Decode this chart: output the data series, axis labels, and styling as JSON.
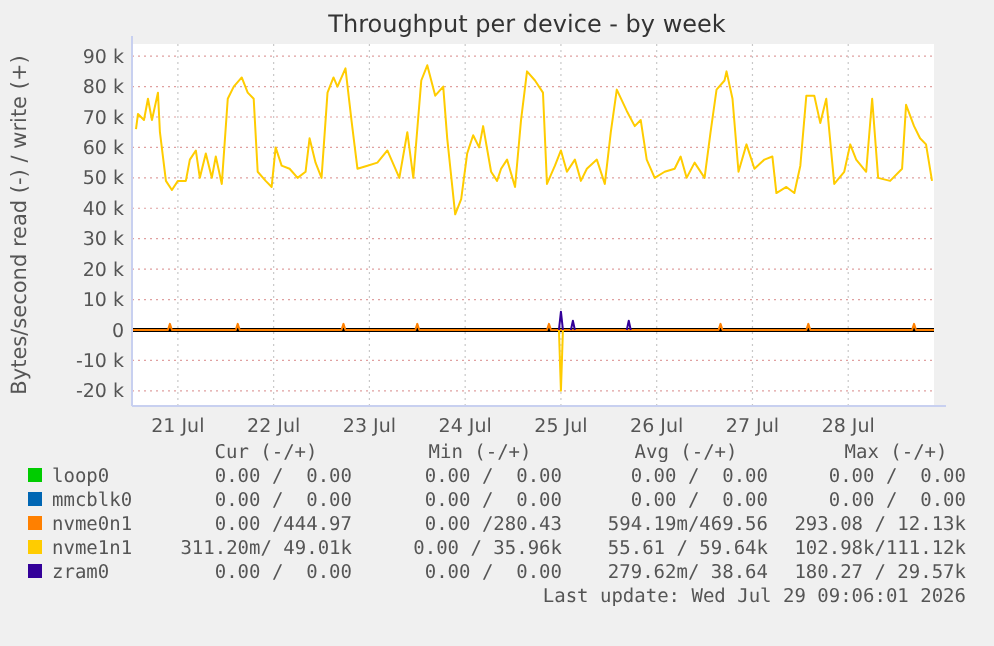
{
  "chart_data": {
    "type": "line",
    "title": "Throughput per device - by week",
    "ylabel": "Bytes/second read (-) / write (+)",
    "xlim": [
      "2026-07-21T00:30",
      "2026-07-29T09:30"
    ],
    "xticks": [
      {
        "value": "2026-07-21T12:00",
        "label": "21 Jul"
      },
      {
        "value": "2026-07-22T12:00",
        "label": "22 Jul"
      },
      {
        "value": "2026-07-23T12:00",
        "label": "23 Jul"
      },
      {
        "value": "2026-07-24T12:00",
        "label": "24 Jul"
      },
      {
        "value": "2026-07-25T12:00",
        "label": "25 Jul"
      },
      {
        "value": "2026-07-26T12:00",
        "label": "26 Jul"
      },
      {
        "value": "2026-07-27T12:00",
        "label": "27 Jul"
      },
      {
        "value": "2026-07-28T12:00",
        "label": "28 Jul"
      }
    ],
    "ylim": [
      -25000,
      94000
    ],
    "yticks": [
      {
        "value": -20000,
        "label": "-20 k"
      },
      {
        "value": -10000,
        "label": "-10 k"
      },
      0,
      {
        "value": 10000,
        "label": "10 k"
      },
      {
        "value": 20000,
        "label": "20 k"
      },
      {
        "value": 30000,
        "label": "30 k"
      },
      {
        "value": 40000,
        "label": "40 k"
      },
      {
        "value": 50000,
        "label": "50 k"
      },
      {
        "value": 60000,
        "label": "60 k"
      },
      {
        "value": 70000,
        "label": "70 k"
      },
      {
        "value": 80000,
        "label": "80 k"
      },
      {
        "value": 90000,
        "label": "90 k"
      }
    ],
    "grid": true,
    "legend": "bottom",
    "marker": "none",
    "line_style": "solid",
    "ref_lines": [
      {
        "axis": "y",
        "value": 0,
        "color": "#000000"
      }
    ],
    "series": [
      {
        "name": "loop0",
        "color": "#00cc00"
      },
      {
        "name": "mmcblk0",
        "color": "#0066b3"
      },
      {
        "name": "nvme0n1",
        "color": "#ff8000",
        "x": [
          "2026-07-21T00:30",
          "2026-07-21T09:30",
          "2026-07-21T10:00",
          "2026-07-21T10:30",
          "2026-07-22T02:30",
          "2026-07-22T03:00",
          "2026-07-22T03:30",
          "2026-07-23T05:00",
          "2026-07-23T05:30",
          "2026-07-23T06:00",
          "2026-07-23T23:30",
          "2026-07-24T00:00",
          "2026-07-24T00:30",
          "2026-07-25T08:30",
          "2026-07-25T09:00",
          "2026-07-25T09:30",
          "2026-07-27T03:30",
          "2026-07-27T04:00",
          "2026-07-27T04:30",
          "2026-07-28T01:30",
          "2026-07-28T02:00",
          "2026-07-28T02:30",
          "2026-07-29T04:00",
          "2026-07-29T04:30",
          "2026-07-29T05:00",
          "2026-07-29T09:30"
        ],
        "values": [
          0,
          0,
          2000,
          0,
          0,
          2000,
          0,
          0,
          2000,
          0,
          0,
          2000,
          0,
          0,
          2000,
          0,
          0,
          2000,
          0,
          0,
          2000,
          0,
          0,
          2000,
          0,
          0
        ]
      },
      {
        "name": "nvme1n1",
        "color": "#ffcc00",
        "x": [
          "2026-07-21T01:30",
          "2026-07-21T02:00",
          "2026-07-21T03:30",
          "2026-07-21T04:30",
          "2026-07-21T05:30",
          "2026-07-21T07:00",
          "2026-07-21T07:30",
          "2026-07-21T09:00",
          "2026-07-21T10:30",
          "2026-07-21T12:00",
          "2026-07-21T14:00",
          "2026-07-21T15:00",
          "2026-07-21T16:30",
          "2026-07-21T17:30",
          "2026-07-21T19:00",
          "2026-07-21T20:30",
          "2026-07-21T21:30",
          "2026-07-21T23:00",
          "2026-07-22T00:30",
          "2026-07-22T02:00",
          "2026-07-22T04:00",
          "2026-07-22T05:30",
          "2026-07-22T07:00",
          "2026-07-22T08:00",
          "2026-07-22T10:00",
          "2026-07-22T11:30",
          "2026-07-22T12:30",
          "2026-07-22T14:00",
          "2026-07-22T16:00",
          "2026-07-22T18:00",
          "2026-07-22T20:00",
          "2026-07-22T21:00",
          "2026-07-22T22:30",
          "2026-07-23T00:00",
          "2026-07-23T01:30",
          "2026-07-23T03:00",
          "2026-07-23T04:00",
          "2026-07-23T06:00",
          "2026-07-23T07:30",
          "2026-07-23T09:00",
          "2026-07-23T11:30",
          "2026-07-23T14:00",
          "2026-07-23T16:30",
          "2026-07-23T19:30",
          "2026-07-23T21:30",
          "2026-07-23T23:00",
          "2026-07-24T01:00",
          "2026-07-24T02:30",
          "2026-07-24T04:30",
          "2026-07-24T06:30",
          "2026-07-24T07:30",
          "2026-07-24T09:30",
          "2026-07-24T11:00",
          "2026-07-24T12:30",
          "2026-07-24T14:00",
          "2026-07-24T15:30",
          "2026-07-24T16:30",
          "2026-07-24T18:30",
          "2026-07-24T20:00",
          "2026-07-24T21:00",
          "2026-07-24T22:30",
          "2026-07-25T00:30",
          "2026-07-25T02:00",
          "2026-07-25T03:30",
          "2026-07-25T05:30",
          "2026-07-25T07:30",
          "2026-07-25T08:30",
          "2026-07-25T10:30",
          "2026-07-25T12:00",
          "2026-07-25T13:30",
          "2026-07-25T15:30",
          "2026-07-25T17:00",
          "2026-07-25T18:30",
          "2026-07-25T21:00",
          "2026-07-25T23:00",
          "2026-07-26T00:30",
          "2026-07-26T02:00",
          "2026-07-26T04:30",
          "2026-07-26T06:30",
          "2026-07-26T08:00",
          "2026-07-26T09:30",
          "2026-07-26T11:30",
          "2026-07-26T14:00",
          "2026-07-26T16:30",
          "2026-07-26T18:00",
          "2026-07-26T19:30",
          "2026-07-26T21:30",
          "2026-07-27T00:00",
          "2026-07-27T01:30",
          "2026-07-27T03:00",
          "2026-07-27T05:00",
          "2026-07-27T05:30",
          "2026-07-27T07:00",
          "2026-07-27T08:30",
          "2026-07-27T10:30",
          "2026-07-27T12:30",
          "2026-07-27T15:00",
          "2026-07-27T17:00",
          "2026-07-27T18:00",
          "2026-07-27T20:30",
          "2026-07-27T22:30",
          "2026-07-28T00:00",
          "2026-07-28T01:30",
          "2026-07-28T03:30",
          "2026-07-28T05:00",
          "2026-07-28T06:30",
          "2026-07-28T08:30",
          "2026-07-28T11:00",
          "2026-07-28T12:30",
          "2026-07-28T14:00",
          "2026-07-28T16:30",
          "2026-07-28T18:00",
          "2026-07-28T19:30",
          "2026-07-28T22:30",
          "2026-07-29T01:30",
          "2026-07-29T02:30",
          "2026-07-29T04:30",
          "2026-07-29T06:00",
          "2026-07-29T07:30",
          "2026-07-29T09:00"
        ],
        "values": [
          66000,
          71000,
          69000,
          76000,
          69000,
          78000,
          65000,
          49000,
          46000,
          49000,
          49000,
          56000,
          59000,
          50000,
          58000,
          50000,
          57000,
          48000,
          76000,
          80000,
          83000,
          78000,
          76000,
          52000,
          49000,
          47000,
          60000,
          54000,
          53000,
          50000,
          52000,
          63000,
          55000,
          50000,
          78000,
          83000,
          80000,
          86000,
          69000,
          53000,
          54000,
          55000,
          59000,
          50000,
          65000,
          50000,
          82000,
          87000,
          77000,
          80000,
          63000,
          38000,
          43000,
          58000,
          64000,
          60000,
          67000,
          52000,
          49000,
          53000,
          56000,
          47000,
          69000,
          85000,
          82000,
          78000,
          48000,
          54000,
          59000,
          52000,
          56000,
          49000,
          53000,
          56000,
          48000,
          65000,
          79000,
          72000,
          67000,
          69000,
          56000,
          50000,
          52000,
          53000,
          57000,
          50000,
          55000,
          50000,
          65000,
          79000,
          82000,
          85000,
          76000,
          52000,
          61000,
          53000,
          56000,
          57000,
          45000,
          47000,
          45000,
          54000,
          77000,
          77000,
          68000,
          76000,
          48000,
          52000,
          61000,
          56000,
          52000,
          76000,
          50000,
          49000,
          53000,
          74000,
          67000,
          63000,
          61000,
          49000
        ]
      },
      {
        "color": "#ffcc00",
        "x": [
          "2026-07-25T11:30",
          "2026-07-25T12:00",
          "2026-07-25T12:30"
        ],
        "values": [
          0,
          -20000,
          0
        ]
      },
      {
        "name": "zram0",
        "color": "#330099",
        "x": [
          "2026-07-25T11:30",
          "2026-07-25T12:00",
          "2026-07-25T12:30",
          "2026-07-25T13:00",
          "2026-07-25T14:30",
          "2026-07-25T15:00",
          "2026-07-25T15:30",
          "2026-07-25T16:00",
          "2026-07-26T04:30",
          "2026-07-26T05:00",
          "2026-07-26T05:30"
        ],
        "values": [
          0,
          6000,
          0,
          null,
          0,
          3000,
          0,
          null,
          0,
          3000,
          0
        ]
      }
    ],
    "annotations": [
      "Cur (-/+)",
      "Min (-/+)",
      "Avg (-/+)",
      "Max (-/+)",
      "0.00 /  0.00",
      "0.00 /  0.00",
      "0.00 /  0.00",
      "0.00 /  0.00",
      "0.00 /  0.00",
      "0.00 /  0.00",
      "0.00 /  0.00",
      "0.00 /  0.00",
      "0.00 /444.97",
      "0.00 /280.43",
      "594.19m/469.56",
      "293.08 / 12.13k",
      "311.20m/ 49.01k",
      "0.00 / 35.96k",
      "55.61 / 59.64k",
      "102.98k/111.12k",
      "0.00 /  0.00",
      "0.00 /  0.00",
      "279.62m/ 38.64",
      "180.27 / 29.57k",
      "Last update: Wed Jul 29 09:06:01 2026"
    ]
  }
}
